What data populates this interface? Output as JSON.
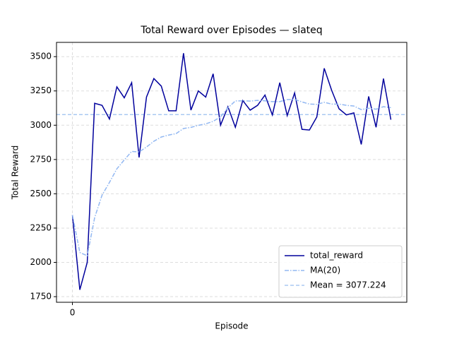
{
  "chart_data": {
    "type": "line",
    "title": "Total Reward over Episodes — slateq",
    "x_label": "Episode",
    "y_label": "Total Reward",
    "x": [
      0,
      1,
      2,
      3,
      4,
      5,
      6,
      7,
      8,
      9,
      10,
      11,
      12,
      13,
      14,
      15,
      16,
      17,
      18,
      19,
      20,
      21,
      22,
      23,
      24,
      25,
      26,
      27,
      28,
      29,
      30,
      31,
      32,
      33,
      34,
      35,
      36,
      37,
      38,
      39,
      40,
      41,
      42,
      43
    ],
    "series": [
      {
        "name": "total_reward",
        "color": "#00009c",
        "style": "solid",
        "values": [
          2345,
          1800,
          2000,
          3160,
          3145,
          3045,
          3280,
          3200,
          3310,
          2765,
          3205,
          3340,
          3285,
          3105,
          3105,
          3525,
          3110,
          3250,
          3205,
          3375,
          3000,
          3135,
          2985,
          3180,
          3110,
          3145,
          3220,
          3075,
          3310,
          3070,
          3235,
          2970,
          2965,
          3060,
          3415,
          3255,
          3120,
          3075,
          3090,
          2860,
          3210,
          2985,
          3340,
          3040
        ]
      },
      {
        "name": "MA(20)",
        "color": "#92b8f2",
        "style": "dashdot",
        "values": [
          2345,
          2072,
          2048,
          2326,
          2490,
          2583,
          2682,
          2747,
          2809,
          2805,
          2841,
          2883,
          2914,
          2928,
          2939,
          2976,
          2984,
          2999,
          3010,
          3028,
          3061,
          3127,
          3177,
          3178,
          3176,
          3181,
          3178,
          3172,
          3172,
          3187,
          3188,
          3170,
          3154,
          3152,
          3167,
          3154,
          3154,
          3145,
          3140,
          3114,
          3124,
          3117,
          3135,
          3128
        ]
      }
    ],
    "hlines": [
      {
        "name": "Mean = 3077.224",
        "value": 3077.224,
        "color": "#aac8f2",
        "style": "dashed"
      }
    ],
    "xlim": [
      -2.15,
      45.15
    ],
    "xticks": [
      0
    ],
    "ylim": [
      1709,
      3604
    ],
    "yticks": [
      1750,
      2000,
      2250,
      2500,
      2750,
      3000,
      3250,
      3500
    ],
    "grid": true,
    "legend": "lower right"
  }
}
